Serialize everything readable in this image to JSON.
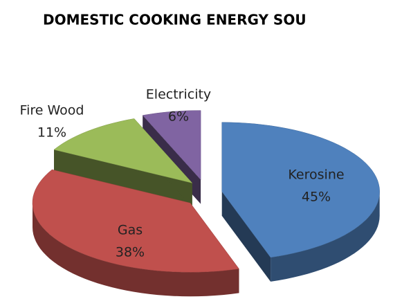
{
  "chart_data": {
    "type": "pie",
    "title": "DOMESTIC COOKING ENERGY SOU",
    "categories": [
      "Kerosine",
      "Gas",
      "Fire Wood",
      "Electricity"
    ],
    "values": [
      45,
      38,
      11,
      6
    ],
    "value_labels": [
      "45%",
      "38%",
      "11%",
      "6%"
    ],
    "colors": [
      "#4f81bd",
      "#c0504d",
      "#9bbb59",
      "#8064a2"
    ]
  }
}
